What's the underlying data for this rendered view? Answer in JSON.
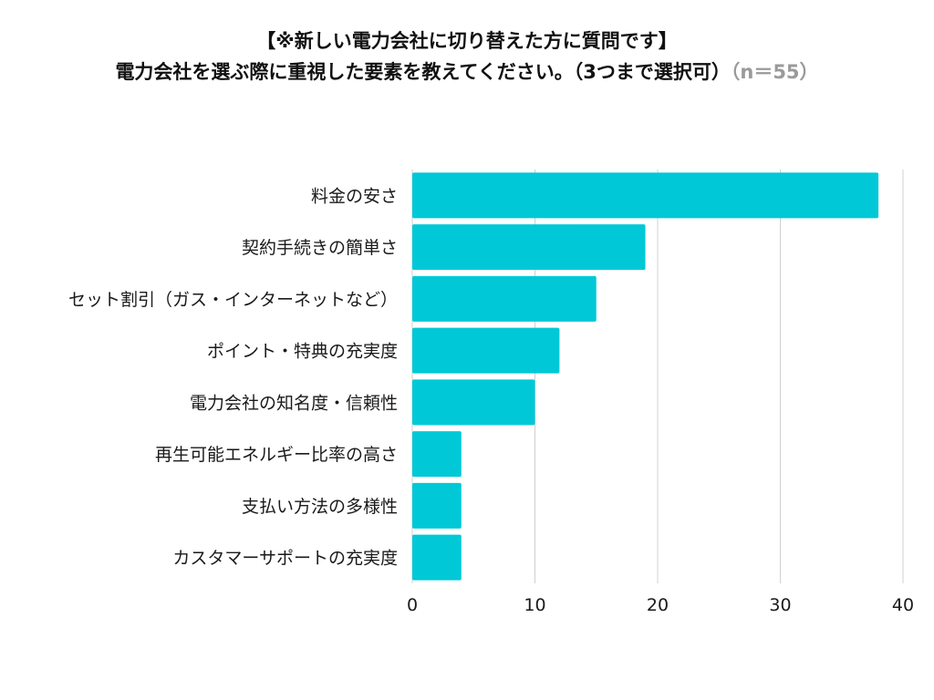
{
  "chart_data": {
    "type": "bar",
    "orientation": "horizontal",
    "title_line1": "【※新しい電力会社に切り替えた方に質問です】",
    "title_line2": "電力会社を選ぶ際に重視した要素を教えてください。（3つまで選択可）",
    "title_note": "（n＝55）",
    "categories": [
      "料金の安さ",
      "契約手続きの簡単さ",
      "セット割引（ガス・インターネットなど）",
      "ポイント・特典の充実度",
      "電力会社の知名度・信頼性",
      "再生可能エネルギー比率の高さ",
      "支払い方法の多様性",
      "カスタマーサポートの充実度"
    ],
    "values": [
      38,
      19,
      15,
      12,
      10,
      4,
      4,
      4
    ],
    "xlim": [
      0,
      40
    ],
    "xticks": [
      "0",
      "10",
      "20",
      "30",
      "40"
    ],
    "grid": true,
    "bar_color": "#00C8D7",
    "grid_color": "#d0d0d0"
  }
}
